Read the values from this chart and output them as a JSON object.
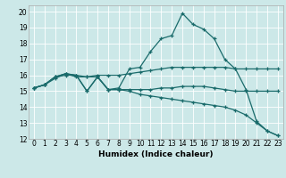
{
  "xlabel": "Humidex (Indice chaleur)",
  "bg_color": "#cce8e8",
  "line_color": "#1a6b6b",
  "xlim": [
    -0.5,
    23.5
  ],
  "ylim": [
    12,
    20.4
  ],
  "xticks": [
    0,
    1,
    2,
    3,
    4,
    5,
    6,
    7,
    8,
    9,
    10,
    11,
    12,
    13,
    14,
    15,
    16,
    17,
    18,
    19,
    20,
    21,
    22,
    23
  ],
  "yticks": [
    12,
    13,
    14,
    15,
    16,
    17,
    18,
    19,
    20
  ],
  "line1_x": [
    0,
    1,
    2,
    3,
    4,
    5,
    6,
    7,
    8,
    9,
    10,
    11,
    12,
    13,
    14,
    15,
    16,
    17,
    18,
    19,
    20,
    21,
    22,
    23
  ],
  "line1_y": [
    15.2,
    15.4,
    15.9,
    16.0,
    16.0,
    15.0,
    15.9,
    15.1,
    15.2,
    16.4,
    16.5,
    17.5,
    18.3,
    18.5,
    19.9,
    19.2,
    18.9,
    18.3,
    17.0,
    16.4,
    15.1,
    13.1,
    12.5,
    12.2
  ],
  "line2_x": [
    0,
    1,
    2,
    3,
    4,
    5,
    6,
    7,
    8,
    9,
    10,
    11,
    12,
    13,
    14,
    15,
    16,
    17,
    18,
    19,
    20,
    21,
    22,
    23
  ],
  "line2_y": [
    15.2,
    15.4,
    15.8,
    16.1,
    15.9,
    15.9,
    16.0,
    16.0,
    16.0,
    16.1,
    16.2,
    16.3,
    16.4,
    16.5,
    16.5,
    16.5,
    16.5,
    16.5,
    16.5,
    16.4,
    16.4,
    16.4,
    16.4,
    16.4
  ],
  "line3_x": [
    0,
    1,
    2,
    3,
    4,
    5,
    6,
    7,
    8,
    9,
    10,
    11,
    12,
    13,
    14,
    15,
    16,
    17,
    18,
    19,
    20,
    21,
    22,
    23
  ],
  "line3_y": [
    15.2,
    15.4,
    15.9,
    16.1,
    16.0,
    15.9,
    15.9,
    15.1,
    15.1,
    15.1,
    15.1,
    15.1,
    15.2,
    15.2,
    15.3,
    15.3,
    15.3,
    15.2,
    15.1,
    15.0,
    15.0,
    15.0,
    15.0,
    15.0
  ],
  "line4_x": [
    0,
    1,
    2,
    3,
    4,
    5,
    6,
    7,
    8,
    9,
    10,
    11,
    12,
    13,
    14,
    15,
    16,
    17,
    18,
    19,
    20,
    21,
    22,
    23
  ],
  "line4_y": [
    15.2,
    15.4,
    15.9,
    16.1,
    16.0,
    15.0,
    15.9,
    15.1,
    15.1,
    15.0,
    14.8,
    14.7,
    14.6,
    14.5,
    14.4,
    14.3,
    14.2,
    14.1,
    14.0,
    13.8,
    13.5,
    13.0,
    12.5,
    12.2
  ]
}
